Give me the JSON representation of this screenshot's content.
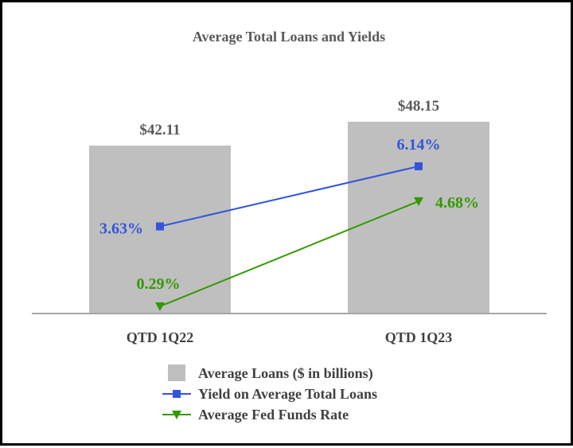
{
  "chart_data": {
    "type": "bar",
    "title": "Average Total Loans and Yields",
    "categories": [
      "QTD 1Q22",
      "QTD 1Q23"
    ],
    "bars": {
      "name": "Average Loans ($ in billions)",
      "values": [
        42.11,
        48.15
      ],
      "labels": [
        "$42.11",
        "$48.15"
      ],
      "color": "#bfbfbf"
    },
    "lines": [
      {
        "name": "Yield on Average Total Loans",
        "values": [
          3.63,
          6.14
        ],
        "labels": [
          "3.63%",
          "6.14%"
        ],
        "color": "#3355dd",
        "marker": "square"
      },
      {
        "name": "Average Fed Funds Rate",
        "values": [
          0.29,
          4.68
        ],
        "labels": [
          "0.29%",
          "4.68%"
        ],
        "color": "#339900",
        "marker": "triangle-down"
      }
    ],
    "grid": false,
    "legend": "bottom"
  },
  "colors": {
    "bar": "#bfbfbf",
    "axis": "#a6a6a6",
    "border": "#000000"
  }
}
